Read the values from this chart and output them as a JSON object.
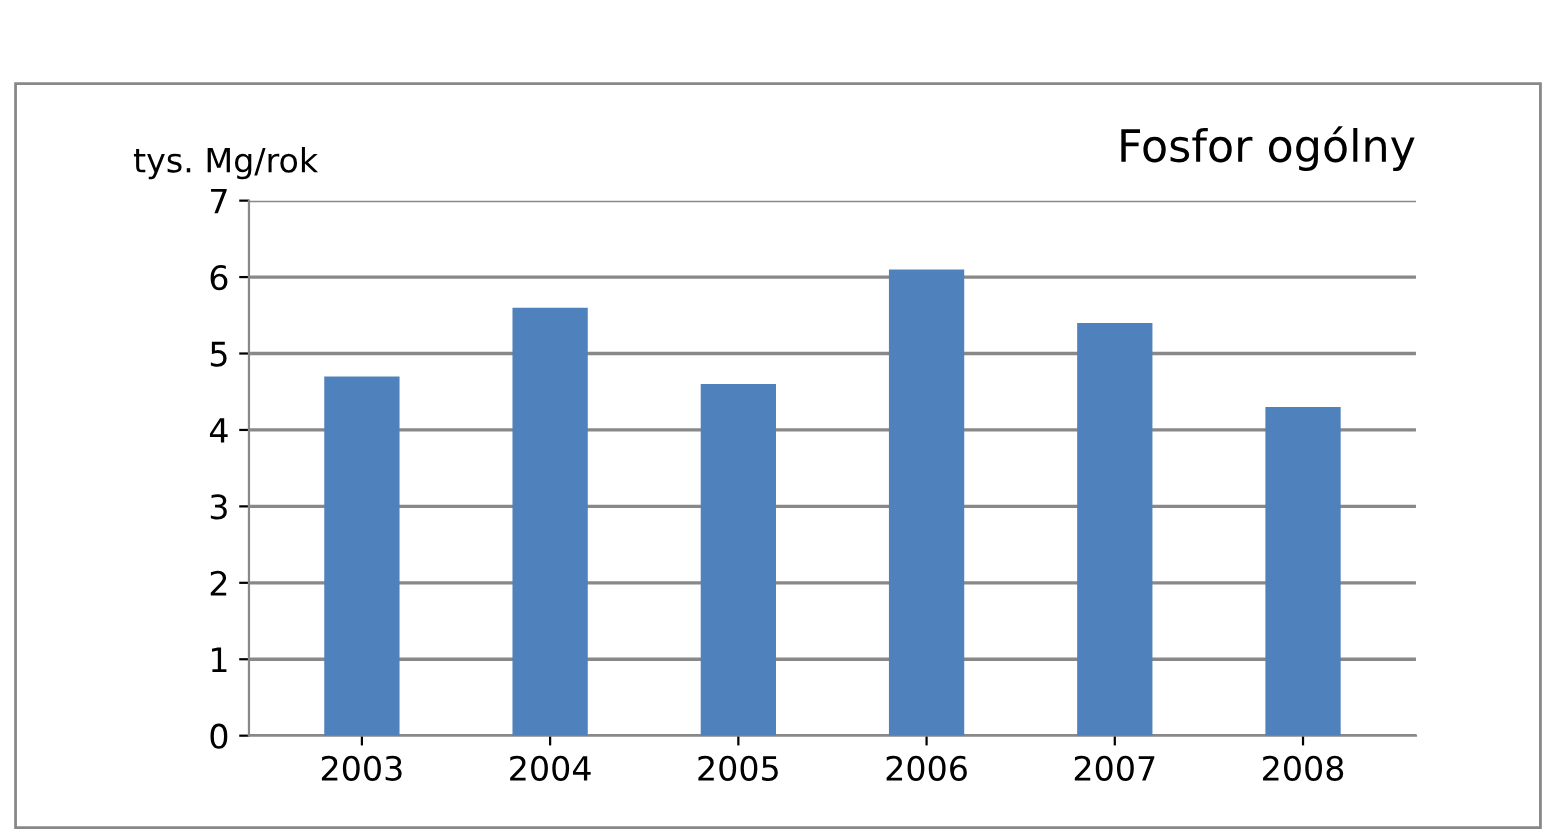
{
  "chart_data": {
    "type": "bar",
    "title": "Fosfor ogólny",
    "ylabel": "tys. Mg/rok",
    "categories": [
      "2003",
      "2004",
      "2005",
      "2006",
      "2007",
      "2008"
    ],
    "values": [
      4.7,
      5.6,
      4.6,
      6.1,
      5.4,
      4.3
    ],
    "color": "#4f81bd",
    "ylim": [
      0,
      7
    ],
    "yticks": [
      0,
      1,
      2,
      3,
      4,
      5,
      6,
      7
    ],
    "grid": "y"
  }
}
